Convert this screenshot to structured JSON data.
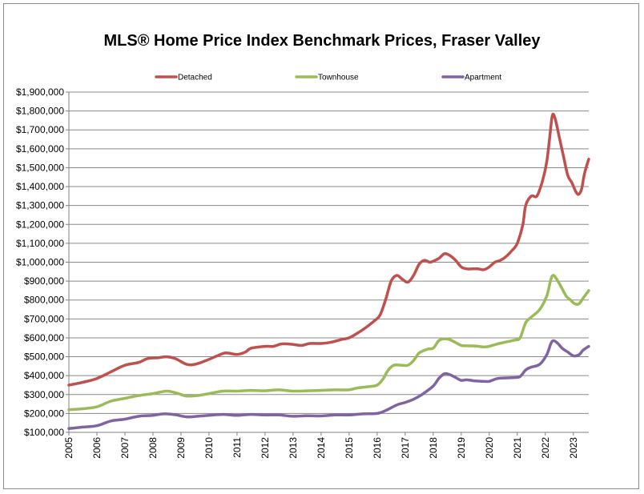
{
  "chart_data": {
    "type": "line",
    "title": "MLS® Home Price Index Benchmark Prices, Fraser Valley",
    "xlabel": "",
    "ylabel": "",
    "xlim": [
      2005,
      2023.55
    ],
    "ylim": [
      100000,
      1900000
    ],
    "y_ticks": [
      100000,
      200000,
      300000,
      400000,
      500000,
      600000,
      700000,
      800000,
      900000,
      1000000,
      1100000,
      1200000,
      1300000,
      1400000,
      1500000,
      1600000,
      1700000,
      1800000,
      1900000
    ],
    "y_tick_labels": [
      "$100,000",
      "$200,000",
      "$300,000",
      "$400,000",
      "$500,000",
      "$600,000",
      "$700,000",
      "$800,000",
      "$900,000",
      "$1,000,000",
      "$1,100,000",
      "$1,200,000",
      "$1,300,000",
      "$1,400,000",
      "$1,500,000",
      "$1,600,000",
      "$1,700,000",
      "$1,800,000",
      "$1,900,000"
    ],
    "x_ticks": [
      2005,
      2006,
      2007,
      2008,
      2009,
      2010,
      2011,
      2012,
      2013,
      2014,
      2015,
      2016,
      2017,
      2018,
      2019,
      2020,
      2021,
      2022,
      2023
    ],
    "x_tick_labels": [
      "2005",
      "2006",
      "2007",
      "2008",
      "2009",
      "2010",
      "2011",
      "2012",
      "2013",
      "2014",
      "2015",
      "2016",
      "2017",
      "2018",
      "2019",
      "2020",
      "2021",
      "2022",
      "2023"
    ],
    "grid": "horizontal",
    "legend_position": "top",
    "series": [
      {
        "name": "Detached",
        "color": "#c0504d",
        "points": [
          [
            2005,
            350000
          ],
          [
            2005.5,
            365000
          ],
          [
            2006,
            385000
          ],
          [
            2006.5,
            420000
          ],
          [
            2007,
            455000
          ],
          [
            2007.5,
            470000
          ],
          [
            2007.8,
            490000
          ],
          [
            2008.2,
            495000
          ],
          [
            2008.5,
            500000
          ],
          [
            2008.8,
            490000
          ],
          [
            2009.2,
            460000
          ],
          [
            2009.5,
            460000
          ],
          [
            2009.9,
            480000
          ],
          [
            2010.3,
            505000
          ],
          [
            2010.6,
            520000
          ],
          [
            2011,
            512000
          ],
          [
            2011.3,
            525000
          ],
          [
            2011.5,
            545000
          ],
          [
            2012,
            555000
          ],
          [
            2012.3,
            555000
          ],
          [
            2012.6,
            568000
          ],
          [
            2013,
            565000
          ],
          [
            2013.3,
            560000
          ],
          [
            2013.6,
            570000
          ],
          [
            2014,
            570000
          ],
          [
            2014.3,
            575000
          ],
          [
            2014.7,
            590000
          ],
          [
            2015,
            600000
          ],
          [
            2015.3,
            625000
          ],
          [
            2015.6,
            655000
          ],
          [
            2015.9,
            690000
          ],
          [
            2016.1,
            720000
          ],
          [
            2016.3,
            800000
          ],
          [
            2016.5,
            900000
          ],
          [
            2016.7,
            930000
          ],
          [
            2016.9,
            910000
          ],
          [
            2017.1,
            895000
          ],
          [
            2017.3,
            930000
          ],
          [
            2017.5,
            990000
          ],
          [
            2017.7,
            1010000
          ],
          [
            2017.9,
            1000000
          ],
          [
            2018.2,
            1020000
          ],
          [
            2018.4,
            1045000
          ],
          [
            2018.6,
            1035000
          ],
          [
            2018.8,
            1010000
          ],
          [
            2019,
            975000
          ],
          [
            2019.2,
            965000
          ],
          [
            2019.4,
            965000
          ],
          [
            2019.6,
            965000
          ],
          [
            2019.8,
            960000
          ],
          [
            2020,
            975000
          ],
          [
            2020.2,
            1000000
          ],
          [
            2020.4,
            1010000
          ],
          [
            2020.6,
            1030000
          ],
          [
            2020.8,
            1060000
          ],
          [
            2021,
            1100000
          ],
          [
            2021.2,
            1200000
          ],
          [
            2021.3,
            1300000
          ],
          [
            2021.5,
            1350000
          ],
          [
            2021.7,
            1350000
          ],
          [
            2021.9,
            1430000
          ],
          [
            2022.05,
            1530000
          ],
          [
            2022.15,
            1650000
          ],
          [
            2022.25,
            1775000
          ],
          [
            2022.35,
            1760000
          ],
          [
            2022.5,
            1660000
          ],
          [
            2022.65,
            1560000
          ],
          [
            2022.8,
            1460000
          ],
          [
            2022.95,
            1420000
          ],
          [
            2023.1,
            1370000
          ],
          [
            2023.2,
            1360000
          ],
          [
            2023.3,
            1390000
          ],
          [
            2023.4,
            1470000
          ],
          [
            2023.55,
            1545000
          ]
        ]
      },
      {
        "name": "Townhouse",
        "color": "#9bbb59",
        "points": [
          [
            2005,
            220000
          ],
          [
            2005.5,
            225000
          ],
          [
            2006,
            235000
          ],
          [
            2006.5,
            265000
          ],
          [
            2007,
            280000
          ],
          [
            2007.5,
            295000
          ],
          [
            2008,
            305000
          ],
          [
            2008.5,
            318000
          ],
          [
            2008.9,
            305000
          ],
          [
            2009.2,
            292000
          ],
          [
            2009.6,
            295000
          ],
          [
            2010,
            305000
          ],
          [
            2010.5,
            318000
          ],
          [
            2011,
            318000
          ],
          [
            2011.5,
            322000
          ],
          [
            2012,
            320000
          ],
          [
            2012.5,
            325000
          ],
          [
            2013,
            318000
          ],
          [
            2013.5,
            320000
          ],
          [
            2014,
            322000
          ],
          [
            2014.5,
            325000
          ],
          [
            2015,
            325000
          ],
          [
            2015.3,
            335000
          ],
          [
            2015.7,
            342000
          ],
          [
            2016,
            350000
          ],
          [
            2016.2,
            380000
          ],
          [
            2016.4,
            430000
          ],
          [
            2016.6,
            455000
          ],
          [
            2016.9,
            455000
          ],
          [
            2017.1,
            455000
          ],
          [
            2017.3,
            480000
          ],
          [
            2017.5,
            520000
          ],
          [
            2017.8,
            540000
          ],
          [
            2018,
            545000
          ],
          [
            2018.2,
            585000
          ],
          [
            2018.4,
            595000
          ],
          [
            2018.6,
            590000
          ],
          [
            2018.8,
            575000
          ],
          [
            2019,
            560000
          ],
          [
            2019.2,
            558000
          ],
          [
            2019.5,
            557000
          ],
          [
            2019.8,
            552000
          ],
          [
            2020,
            555000
          ],
          [
            2020.3,
            568000
          ],
          [
            2020.6,
            578000
          ],
          [
            2020.9,
            588000
          ],
          [
            2021.1,
            600000
          ],
          [
            2021.3,
            680000
          ],
          [
            2021.5,
            710000
          ],
          [
            2021.8,
            750000
          ],
          [
            2022.05,
            820000
          ],
          [
            2022.2,
            910000
          ],
          [
            2022.3,
            930000
          ],
          [
            2022.45,
            900000
          ],
          [
            2022.6,
            860000
          ],
          [
            2022.75,
            820000
          ],
          [
            2022.9,
            800000
          ],
          [
            2023.05,
            780000
          ],
          [
            2023.2,
            780000
          ],
          [
            2023.35,
            810000
          ],
          [
            2023.55,
            850000
          ]
        ]
      },
      {
        "name": "Apartment",
        "color": "#8064a2",
        "points": [
          [
            2005,
            120000
          ],
          [
            2005.5,
            128000
          ],
          [
            2006,
            135000
          ],
          [
            2006.5,
            160000
          ],
          [
            2007,
            170000
          ],
          [
            2007.5,
            185000
          ],
          [
            2008,
            190000
          ],
          [
            2008.4,
            198000
          ],
          [
            2008.8,
            193000
          ],
          [
            2009.2,
            182000
          ],
          [
            2009.6,
            185000
          ],
          [
            2010,
            190000
          ],
          [
            2010.5,
            195000
          ],
          [
            2011,
            190000
          ],
          [
            2011.5,
            195000
          ],
          [
            2012,
            192000
          ],
          [
            2012.5,
            192000
          ],
          [
            2013,
            185000
          ],
          [
            2013.5,
            188000
          ],
          [
            2014,
            187000
          ],
          [
            2014.5,
            192000
          ],
          [
            2015,
            192000
          ],
          [
            2015.5,
            198000
          ],
          [
            2016,
            200000
          ],
          [
            2016.3,
            215000
          ],
          [
            2016.7,
            245000
          ],
          [
            2017,
            258000
          ],
          [
            2017.3,
            275000
          ],
          [
            2017.6,
            300000
          ],
          [
            2018,
            345000
          ],
          [
            2018.2,
            385000
          ],
          [
            2018.4,
            410000
          ],
          [
            2018.6,
            405000
          ],
          [
            2018.8,
            390000
          ],
          [
            2019,
            375000
          ],
          [
            2019.2,
            378000
          ],
          [
            2019.5,
            372000
          ],
          [
            2019.8,
            370000
          ],
          [
            2020,
            370000
          ],
          [
            2020.3,
            385000
          ],
          [
            2020.6,
            388000
          ],
          [
            2020.9,
            390000
          ],
          [
            2021.1,
            395000
          ],
          [
            2021.3,
            430000
          ],
          [
            2021.5,
            445000
          ],
          [
            2021.8,
            460000
          ],
          [
            2022.05,
            510000
          ],
          [
            2022.2,
            570000
          ],
          [
            2022.3,
            585000
          ],
          [
            2022.45,
            570000
          ],
          [
            2022.6,
            545000
          ],
          [
            2022.8,
            525000
          ],
          [
            2023,
            505000
          ],
          [
            2023.2,
            510000
          ],
          [
            2023.35,
            535000
          ],
          [
            2023.55,
            555000
          ]
        ]
      }
    ]
  }
}
